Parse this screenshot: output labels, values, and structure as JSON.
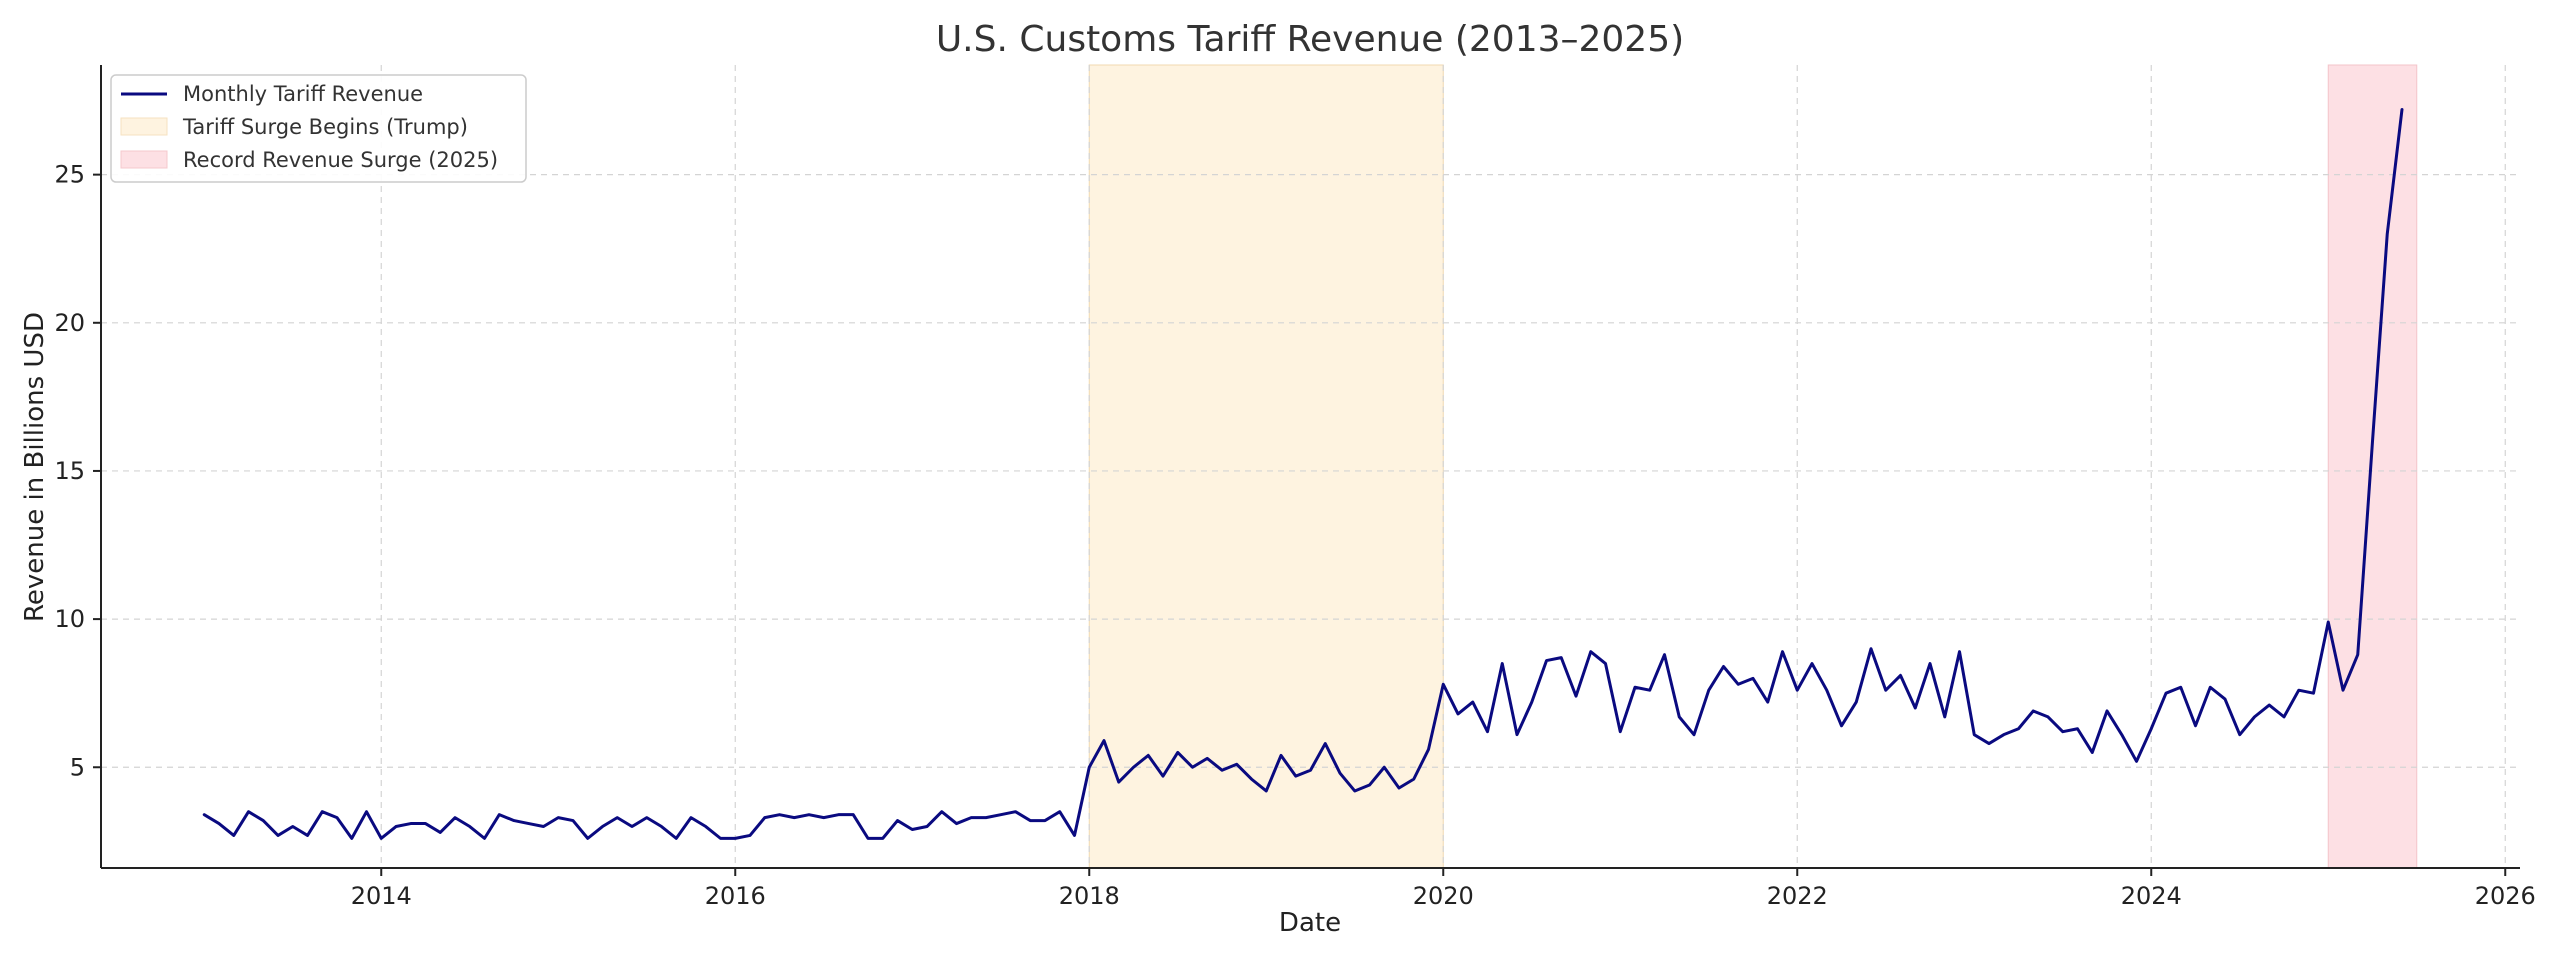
{
  "chart_data": {
    "type": "line",
    "title": "U.S. Customs Tariff Revenue (2013–2025)",
    "xlabel": "Date",
    "ylabel": "Revenue in Billions USD",
    "xlim": [
      "2012-06",
      "2026-02"
    ],
    "ylim": [
      1.6,
      28.7
    ],
    "x_ticks": [
      "2014",
      "2016",
      "2018",
      "2020",
      "2022",
      "2024",
      "2026"
    ],
    "y_ticks": [
      5,
      10,
      15,
      20,
      25
    ],
    "grid": true,
    "legend_position": "top-left",
    "colors": {
      "line": "#0a0a80",
      "trump_band": "#fef3e0",
      "surge_band": "#fde0e4"
    },
    "legend": [
      {
        "label": "Monthly Tariff Revenue",
        "kind": "line"
      },
      {
        "label": "Tariff Surge Begins (Trump)",
        "kind": "patch_trump"
      },
      {
        "label": "Record Revenue Surge (2025)",
        "kind": "patch_surge"
      }
    ],
    "shaded_regions": [
      {
        "label": "Tariff Surge Begins (Trump)",
        "start": "2018-01",
        "end": "2020-01"
      },
      {
        "label": "Record Revenue Surge (2025)",
        "start": "2025-01",
        "end": "2025-07"
      }
    ],
    "series": [
      {
        "name": "Monthly Tariff Revenue",
        "start": "2013-01",
        "frequency": "monthly",
        "values": [
          3.4,
          3.1,
          2.7,
          3.5,
          3.2,
          2.7,
          3.0,
          2.7,
          3.5,
          3.3,
          2.6,
          3.5,
          2.6,
          3.0,
          3.1,
          3.1,
          2.8,
          3.3,
          3.0,
          2.6,
          3.4,
          3.2,
          3.1,
          3.0,
          3.3,
          3.2,
          2.6,
          3.0,
          3.3,
          3.0,
          3.3,
          3.0,
          2.6,
          3.3,
          3.0,
          2.6,
          2.6,
          2.7,
          3.3,
          3.4,
          3.3,
          3.4,
          3.3,
          3.4,
          3.4,
          2.6,
          2.6,
          3.2,
          2.9,
          3.0,
          3.5,
          3.1,
          3.3,
          3.3,
          3.4,
          3.5,
          3.2,
          3.2,
          3.5,
          2.7,
          5.0,
          5.9,
          4.5,
          5.0,
          5.4,
          4.7,
          5.5,
          5.0,
          5.3,
          4.9,
          5.1,
          4.6,
          4.2,
          5.4,
          4.7,
          4.9,
          5.8,
          4.8,
          4.2,
          4.4,
          5.0,
          4.3,
          4.6,
          5.6,
          7.8,
          6.8,
          7.2,
          6.2,
          8.5,
          6.1,
          7.2,
          8.6,
          8.7,
          7.4,
          8.9,
          8.5,
          6.2,
          7.7,
          7.6,
          8.8,
          6.7,
          6.1,
          7.6,
          8.4,
          7.8,
          8.0,
          7.2,
          8.9,
          7.6,
          8.5,
          7.6,
          6.4,
          7.2,
          9.0,
          7.6,
          8.1,
          7.0,
          8.5,
          6.7,
          8.9,
          6.1,
          5.8,
          6.1,
          6.3,
          6.9,
          6.7,
          6.2,
          6.3,
          5.5,
          6.9,
          6.1,
          5.2,
          6.3,
          7.5,
          7.7,
          6.4,
          7.7,
          7.3,
          6.1,
          6.7,
          7.1,
          6.7,
          7.6,
          7.5,
          9.9,
          7.6,
          8.8,
          16.0,
          23.0,
          27.2
        ]
      }
    ]
  }
}
